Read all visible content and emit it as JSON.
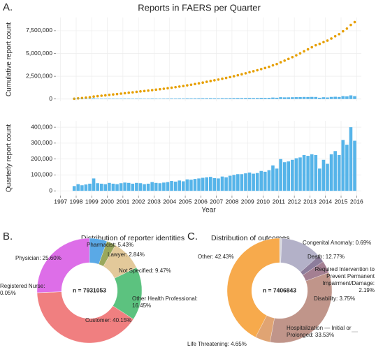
{
  "chart_data": [
    {
      "type": "combo",
      "panel": "A.",
      "title": "Reports in FAERS per Quarter",
      "xlabel": "Year",
      "x": [
        1997.875,
        1998.125,
        1998.375,
        1998.625,
        1998.875,
        1999.125,
        1999.375,
        1999.625,
        1999.875,
        2000.125,
        2000.375,
        2000.625,
        2000.875,
        2001.125,
        2001.375,
        2001.625,
        2001.875,
        2002.125,
        2002.375,
        2002.625,
        2002.875,
        2003.125,
        2003.375,
        2003.625,
        2003.875,
        2004.125,
        2004.375,
        2004.625,
        2004.875,
        2005.125,
        2005.375,
        2005.625,
        2005.875,
        2006.125,
        2006.375,
        2006.625,
        2006.875,
        2007.125,
        2007.375,
        2007.625,
        2007.875,
        2008.125,
        2008.375,
        2008.625,
        2008.875,
        2009.125,
        2009.375,
        2009.625,
        2009.875,
        2010.125,
        2010.375,
        2010.625,
        2010.875,
        2011.125,
        2011.375,
        2011.625,
        2011.875,
        2012.125,
        2012.375,
        2012.625,
        2012.875,
        2013.125,
        2013.375,
        2013.625,
        2013.875,
        2014.125,
        2014.375,
        2014.625,
        2014.875,
        2015.125,
        2015.375,
        2015.625,
        2015.875
      ],
      "xlim": [
        1996.7,
        2016.3
      ],
      "xticks": [
        1997,
        1998,
        1999,
        2000,
        2001,
        2002,
        2003,
        2004,
        2005,
        2006,
        2007,
        2008,
        2009,
        2010,
        2011,
        2012,
        2013,
        2014,
        2015,
        2016
      ],
      "grid": true,
      "series": [
        {
          "type": "scatter",
          "color": "#e69f00",
          "values": [
            30000,
            72000,
            107000,
            147000,
            192000,
            270000,
            318000,
            363000,
            405000,
            455000,
            500000,
            542000,
            590000,
            642000,
            692000,
            737000,
            787000,
            835000,
            877000,
            922000,
            977000,
            1027000,
            1075000,
            1127000,
            1182000,
            1244000,
            1302000,
            1367000,
            1427000,
            1499000,
            1569000,
            1644000,
            1722000,
            1804000,
            1889000,
            1977000,
            2057000,
            2135000,
            2225000,
            2310000,
            2405000,
            2505000,
            2610000,
            2715000,
            2825000,
            2940000,
            3048000,
            3160000,
            3285000,
            3405000,
            3535000,
            3695000,
            3835000,
            4035000,
            4215000,
            4400000,
            4595000,
            4800000,
            5010000,
            5235000,
            5455000,
            5685000,
            5910000,
            6050000,
            6245000,
            6415000,
            6645000,
            6895000,
            7120000,
            7440000,
            7730000,
            8130000,
            8445000
          ]
        },
        {
          "type": "bar",
          "color": "#56b4e9",
          "values": [
            30000,
            42000,
            35000,
            40000,
            45000,
            78000,
            48000,
            45000,
            42000,
            50000,
            45000,
            42000,
            48000,
            52000,
            50000,
            45000,
            50000,
            48000,
            42000,
            45000,
            55000,
            50000,
            48000,
            52000,
            55000,
            62000,
            58000,
            65000,
            60000,
            72000,
            70000,
            75000,
            78000,
            82000,
            85000,
            88000,
            80000,
            78000,
            90000,
            85000,
            95000,
            100000,
            105000,
            105000,
            110000,
            115000,
            108000,
            112000,
            125000,
            120000,
            130000,
            160000,
            140000,
            200000,
            180000,
            185000,
            195000,
            205000,
            210000,
            225000,
            220000,
            230000,
            225000,
            140000,
            195000,
            170000,
            230000,
            250000,
            225000,
            320000,
            290000,
            400000,
            315000
          ]
        }
      ],
      "axes": [
        {
          "ylabel": "Cumulative report count",
          "ylim": [
            -250000,
            8950000
          ],
          "yticks": [
            0,
            {
              "value": 2500000,
              "label": "2,500,000"
            },
            {
              "value": 5000000,
              "label": "5,000,000"
            },
            {
              "value": 7500000,
              "label": "7,500,000"
            }
          ]
        },
        {
          "ylabel": "Quarterly report count",
          "ylim": [
            -30000,
            440000
          ],
          "yticks": [
            0,
            {
              "value": 100000,
              "label": "100,000"
            },
            {
              "value": 200000,
              "label": "200,000"
            },
            {
              "value": 300000,
              "label": "300,000"
            },
            {
              "value": 400000,
              "label": "400,000"
            }
          ]
        }
      ]
    },
    {
      "type": "pie",
      "panel": "B.",
      "title": "Distribution of reporter identities",
      "center_label": "n = 7931053",
      "values": [
        5.43,
        2.84,
        9.47,
        16.45,
        40.15,
        0.05,
        25.6
      ],
      "value_labels": [
        "Pharmacist: 5.43%",
        "Lawyer: 2.84%",
        "Not Specified: 9.47%",
        "Other Health Professional: 16.45%",
        "Customer: 40.15%",
        "Registered Nurse: 0.05%",
        "Physician: 25.60%"
      ],
      "colors": [
        "#5aa9e6",
        "#9aa85c",
        "#e3c99a",
        "#5cc27f",
        "#f07f80",
        "#c8a0c8",
        "#dd6ee8"
      ]
    },
    {
      "type": "pie",
      "panel": "C.",
      "title": "Distribution of outcomes",
      "center_label": "n = 7406843",
      "values": [
        0.69,
        12.77,
        2.19,
        3.75,
        33.53,
        4.65,
        42.43
      ],
      "value_labels": [
        "Congenital Anomaly: 0.69%",
        "Death: 12.77%",
        "Required Intervention to Prevent Permanent Impairment/Damage: 2.19%",
        "Disability: 3.75%",
        "Hospitalization — Initial or Prolonged: 33.53%",
        "Life Threatening: 4.65%",
        "Other: 42.43%"
      ],
      "colors": [
        "#d8d8de",
        "#b3b1c8",
        "#8d7d9c",
        "#a47f92",
        "#c0958a",
        "#e0a473",
        "#f7aa4c"
      ]
    }
  ]
}
